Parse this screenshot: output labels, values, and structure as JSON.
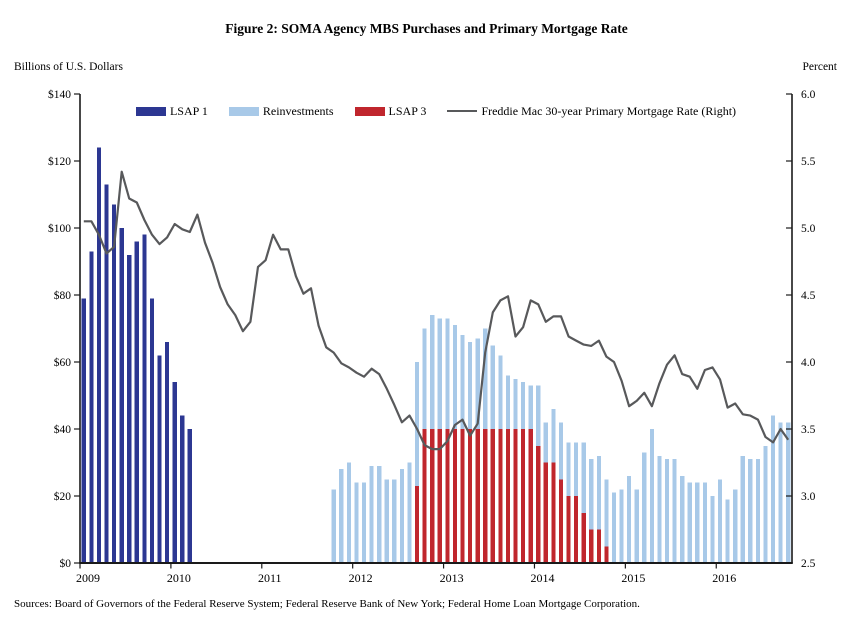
{
  "figure": {
    "source_note": "Sources: Board of Governors of the Federal Reserve System; Federal Reserve Bank of New York; Federal Home Loan Mortgage Corporation."
  },
  "chart_data": {
    "type": "bar",
    "subtype": "stacked monthly bars with overlaid line on secondary axis",
    "title": "Figure 2: SOMA Agency MBS Purchases and Primary Mortgage Rate",
    "x": {
      "start_month": "2009-01",
      "end_month": "2016-10",
      "year_tick_labels": [
        "2009",
        "2010",
        "2011",
        "2012",
        "2013",
        "2014",
        "2015",
        "2016"
      ]
    },
    "left_axis": {
      "label": "Billions of U.S. Dollars",
      "min": 0,
      "max": 140,
      "tick_step": 20,
      "tick_labels": [
        "$0",
        "$20",
        "$40",
        "$60",
        "$80",
        "$100",
        "$120",
        "$140"
      ]
    },
    "right_axis": {
      "label": "Percent",
      "min": 2.5,
      "max": 6.0,
      "tick_step": 0.5,
      "tick_labels": [
        "2.5",
        "3.0",
        "3.5",
        "4.0",
        "4.5",
        "5.0",
        "5.5",
        "6.0"
      ]
    },
    "stacking_note": "LSAP 3 bars form the lower segment and Reinvestments stack on top from Sep 2012 through Oct 2014",
    "series": [
      {
        "name": "LSAP 1",
        "type": "bar",
        "axis": "left",
        "color": "#2c3792",
        "values": [
          79,
          93,
          124,
          113,
          107,
          100,
          92,
          96,
          98,
          79,
          62,
          66,
          54,
          44,
          40,
          0,
          0,
          0,
          0,
          0,
          0,
          0,
          0,
          0,
          0,
          0,
          0,
          0,
          0,
          0,
          0,
          0,
          0,
          0,
          0,
          0,
          0,
          0,
          0,
          0,
          0,
          0,
          0,
          0,
          0,
          0,
          0,
          0,
          0,
          0,
          0,
          0,
          0,
          0,
          0,
          0,
          0,
          0,
          0,
          0,
          0,
          0,
          0,
          0,
          0,
          0,
          0,
          0,
          0,
          0,
          0,
          0,
          0,
          0,
          0,
          0,
          0,
          0,
          0,
          0,
          0,
          0,
          0,
          0,
          0,
          0,
          0,
          0,
          0,
          0,
          0,
          0,
          0,
          0
        ]
      },
      {
        "name": "Reinvestments",
        "type": "bar",
        "axis": "left",
        "color": "#a8c9e8",
        "values": [
          0,
          0,
          0,
          0,
          0,
          0,
          0,
          0,
          0,
          0,
          0,
          0,
          0,
          0,
          0,
          0,
          0,
          0,
          0,
          0,
          0,
          0,
          0,
          0,
          0,
          0,
          0,
          0,
          0,
          0,
          0,
          0,
          0,
          22,
          28,
          30,
          24,
          24,
          29,
          29,
          25,
          25,
          28,
          30,
          37,
          30,
          34,
          33,
          33,
          31,
          28,
          26,
          27,
          30,
          25,
          22,
          16,
          15,
          14,
          13,
          18,
          12,
          16,
          17,
          16,
          16,
          21,
          21,
          22,
          20,
          21,
          22,
          26,
          22,
          33,
          40,
          32,
          31,
          31,
          26,
          24,
          24,
          24,
          20,
          25,
          19,
          22,
          32,
          31,
          31,
          35,
          44,
          42,
          42
        ]
      },
      {
        "name": "LSAP 3",
        "type": "bar",
        "axis": "left",
        "color": "#c0262d",
        "values": [
          0,
          0,
          0,
          0,
          0,
          0,
          0,
          0,
          0,
          0,
          0,
          0,
          0,
          0,
          0,
          0,
          0,
          0,
          0,
          0,
          0,
          0,
          0,
          0,
          0,
          0,
          0,
          0,
          0,
          0,
          0,
          0,
          0,
          0,
          0,
          0,
          0,
          0,
          0,
          0,
          0,
          0,
          0,
          0,
          23,
          40,
          40,
          40,
          40,
          40,
          40,
          40,
          40,
          40,
          40,
          40,
          40,
          40,
          40,
          40,
          35,
          30,
          30,
          25,
          20,
          20,
          15,
          10,
          10,
          5,
          0,
          0,
          0,
          0,
          0,
          0,
          0,
          0,
          0,
          0,
          0,
          0,
          0,
          0,
          0,
          0,
          0,
          0,
          0,
          0,
          0,
          0,
          0,
          0
        ]
      },
      {
        "name": "Freddie Mac 30-year Primary Mortgage Rate (Right)",
        "type": "line",
        "axis": "right",
        "color": "#58595b",
        "values": [
          5.05,
          5.05,
          4.95,
          4.81,
          4.86,
          5.42,
          5.22,
          5.19,
          5.06,
          4.95,
          4.88,
          4.93,
          5.03,
          4.99,
          4.97,
          5.1,
          4.89,
          4.74,
          4.56,
          4.43,
          4.35,
          4.23,
          4.3,
          4.71,
          4.76,
          4.95,
          4.84,
          4.84,
          4.64,
          4.51,
          4.55,
          4.27,
          4.11,
          4.07,
          3.99,
          3.96,
          3.92,
          3.89,
          3.95,
          3.91,
          3.8,
          3.68,
          3.55,
          3.6,
          3.5,
          3.38,
          3.35,
          3.35,
          3.41,
          3.53,
          3.57,
          3.45,
          3.54,
          4.07,
          4.37,
          4.46,
          4.49,
          4.19,
          4.26,
          4.46,
          4.43,
          4.3,
          4.34,
          4.34,
          4.19,
          4.16,
          4.13,
          4.12,
          4.16,
          4.04,
          4.0,
          3.86,
          3.67,
          3.71,
          3.77,
          3.67,
          3.84,
          3.98,
          4.05,
          3.91,
          3.89,
          3.8,
          3.94,
          3.96,
          3.87,
          3.66,
          3.69,
          3.61,
          3.6,
          3.57,
          3.44,
          3.4,
          3.5,
          3.42
        ]
      }
    ]
  }
}
